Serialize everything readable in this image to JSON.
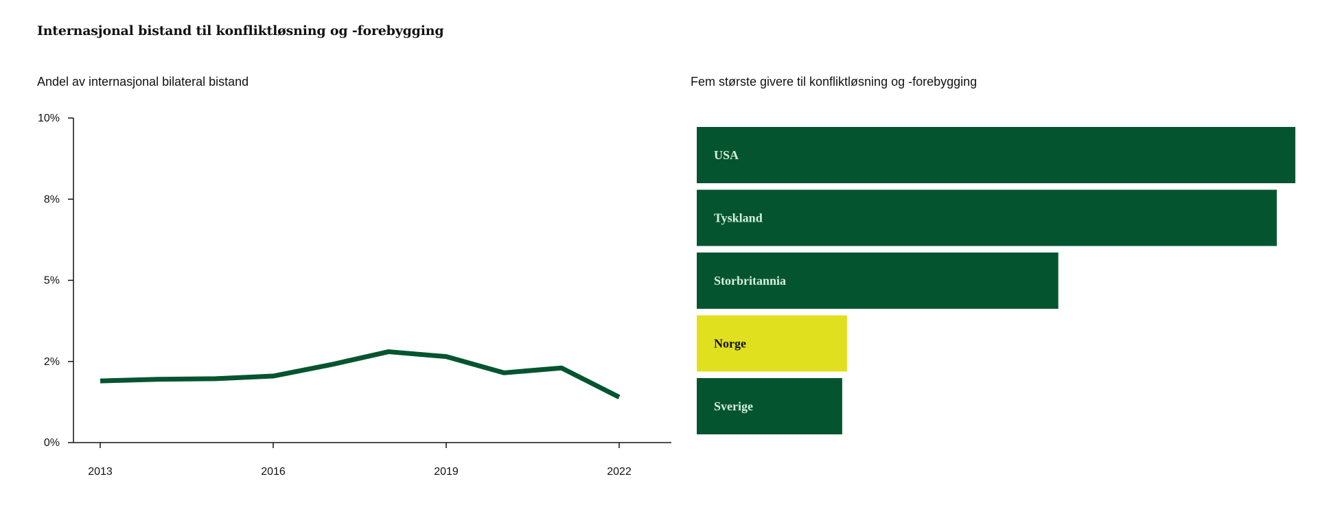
{
  "title": "Internasjonal bistand til konfliktløsning og -forebygging",
  "chart_data": [
    {
      "type": "line",
      "title": "Andel av internasjonal bilateral bistand",
      "x": [
        2013,
        2014,
        2015,
        2016,
        2017,
        2018,
        2019,
        2020,
        2021,
        2022
      ],
      "series": [
        {
          "values": [
            1.9,
            1.95,
            1.97,
            2.05,
            2.4,
            2.8,
            2.65,
            2.15,
            2.3,
            1.4
          ]
        }
      ],
      "x_ticks": [
        "2013",
        "2016",
        "2019",
        "2022"
      ],
      "y_ticks": [
        "0%",
        "2%",
        "5%",
        "8%",
        "10%"
      ],
      "ylim": [
        0,
        10
      ],
      "grid": false,
      "color": "#04552f"
    },
    {
      "type": "bar",
      "orientation": "horizontal",
      "title": "Fem største givere til konfliktløsning og -forebygging",
      "categories": [
        "USA",
        "Tyskland",
        "Storbritannia",
        "Norge",
        "Sverige"
      ],
      "values": [
        100,
        96.9,
        60.4,
        25.1,
        24.3
      ],
      "colors": [
        "#04552f",
        "#04552f",
        "#04552f",
        "#e1e01f",
        "#04552f"
      ],
      "label_colors": [
        "#d6f0dc",
        "#d6f0dc",
        "#d6f0dc",
        "#111111",
        "#d6f0dc"
      ]
    }
  ]
}
